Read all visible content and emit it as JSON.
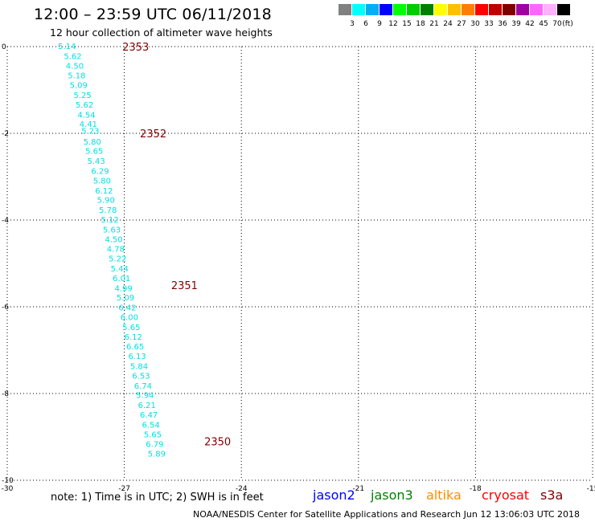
{
  "header": {
    "title": "12:00 – 23:59 UTC 06/11/2018",
    "subtitle": "12 hour collection of altimeter wave heights"
  },
  "colorbar": {
    "colors": [
      "#808080",
      "#00ffff",
      "#00b0f0",
      "#0000ff",
      "#00ff00",
      "#00cc00",
      "#008000",
      "#ffff00",
      "#ffc000",
      "#ff8000",
      "#ff0000",
      "#c00000",
      "#800000",
      "#a000a0",
      "#ff66ff",
      "#ffb0ff",
      "#000000"
    ],
    "labels": [
      "3",
      "6",
      "9",
      "12",
      "15",
      "18",
      "21",
      "24",
      "27",
      "30",
      "33",
      "36",
      "39",
      "42",
      "45",
      "70"
    ],
    "unit": "(ft)"
  },
  "footer": {
    "note": "note: 1) Time is in UTC; 2) SWH is in feet",
    "credit": "NOAA/NESDIS Center for Satellite Applications and Research     Jun 12 13:06:03 UTC 2018"
  },
  "satellites": [
    {
      "name": "jason2",
      "color": "#0000ff"
    },
    {
      "name": "jason3",
      "color": "#008000"
    },
    {
      "name": "altika",
      "color": "#ff8c00"
    },
    {
      "name": "cryosat",
      "color": "#ff0000"
    },
    {
      "name": "s3a",
      "color": "#800000"
    }
  ],
  "chart_data": {
    "type": "scatter",
    "xlim": [
      -30,
      -15
    ],
    "ylim": [
      -10,
      0
    ],
    "x_ticks": [
      "-30",
      "-27",
      "-24",
      "-21",
      "-18",
      "-15"
    ],
    "y_ticks": [
      "0",
      "-2",
      "-4",
      "-6",
      "-8",
      "-10"
    ],
    "grid": true,
    "marker_color": "#00e0e0",
    "label_color": "#800000",
    "time_labels": [
      {
        "text": "2353",
        "lon": -27.05,
        "lat": 0.0
      },
      {
        "text": "2352",
        "lon": -26.6,
        "lat": -2.0
      },
      {
        "text": "2351",
        "lon": -25.8,
        "lat": -5.5
      },
      {
        "text": "2350",
        "lon": -24.95,
        "lat": -9.1
      }
    ],
    "points": [
      {
        "lon": -28.7,
        "lat": 0.0,
        "swh": "5.14"
      },
      {
        "lon": -28.55,
        "lat": -0.23,
        "swh": "5.62"
      },
      {
        "lon": -28.5,
        "lat": -0.45,
        "swh": "4.50"
      },
      {
        "lon": -28.45,
        "lat": -0.68,
        "swh": "5.18"
      },
      {
        "lon": -28.4,
        "lat": -0.9,
        "swh": "5.09"
      },
      {
        "lon": -28.3,
        "lat": -1.13,
        "swh": "5.25"
      },
      {
        "lon": -28.25,
        "lat": -1.35,
        "swh": "5.62"
      },
      {
        "lon": -28.2,
        "lat": -1.58,
        "swh": "4.54"
      },
      {
        "lon": -28.15,
        "lat": -1.8,
        "swh": "4.41"
      },
      {
        "lon": -28.1,
        "lat": -1.95,
        "swh": "5.23"
      },
      {
        "lon": -28.05,
        "lat": -2.2,
        "swh": "5.80"
      },
      {
        "lon": -28.0,
        "lat": -2.42,
        "swh": "5.65"
      },
      {
        "lon": -27.95,
        "lat": -2.65,
        "swh": "5.43"
      },
      {
        "lon": -27.85,
        "lat": -2.88,
        "swh": "6.29"
      },
      {
        "lon": -27.8,
        "lat": -3.1,
        "swh": "5.80"
      },
      {
        "lon": -27.75,
        "lat": -3.33,
        "swh": "6.12"
      },
      {
        "lon": -27.7,
        "lat": -3.55,
        "swh": "5.90"
      },
      {
        "lon": -27.65,
        "lat": -3.78,
        "swh": "5.78"
      },
      {
        "lon": -27.6,
        "lat": -4.0,
        "swh": "5.12"
      },
      {
        "lon": -27.55,
        "lat": -4.23,
        "swh": "5.63"
      },
      {
        "lon": -27.5,
        "lat": -4.45,
        "swh": "4.50"
      },
      {
        "lon": -27.45,
        "lat": -4.68,
        "swh": "4.78"
      },
      {
        "lon": -27.4,
        "lat": -4.9,
        "swh": "5.22"
      },
      {
        "lon": -27.35,
        "lat": -5.13,
        "swh": "5.44"
      },
      {
        "lon": -27.3,
        "lat": -5.35,
        "swh": "6.01"
      },
      {
        "lon": -27.25,
        "lat": -5.58,
        "swh": "4.99"
      },
      {
        "lon": -27.2,
        "lat": -5.8,
        "swh": "5.09"
      },
      {
        "lon": -27.15,
        "lat": -6.03,
        "swh": "6.42"
      },
      {
        "lon": -27.1,
        "lat": -6.25,
        "swh": "6.00"
      },
      {
        "lon": -27.05,
        "lat": -6.48,
        "swh": "5.65"
      },
      {
        "lon": -27.0,
        "lat": -6.7,
        "swh": "6.12"
      },
      {
        "lon": -26.95,
        "lat": -6.93,
        "swh": "6.65"
      },
      {
        "lon": -26.9,
        "lat": -7.15,
        "swh": "6.13"
      },
      {
        "lon": -26.85,
        "lat": -7.38,
        "swh": "5.84"
      },
      {
        "lon": -26.8,
        "lat": -7.6,
        "swh": "6.53"
      },
      {
        "lon": -26.75,
        "lat": -7.83,
        "swh": "6.74"
      },
      {
        "lon": -26.7,
        "lat": -8.05,
        "swh": "5.94"
      },
      {
        "lon": -26.65,
        "lat": -8.28,
        "swh": "6.21"
      },
      {
        "lon": -26.6,
        "lat": -8.5,
        "swh": "6.47"
      },
      {
        "lon": -26.55,
        "lat": -8.73,
        "swh": "6.54"
      },
      {
        "lon": -26.5,
        "lat": -8.95,
        "swh": "5.65"
      },
      {
        "lon": -26.45,
        "lat": -9.18,
        "swh": "6.79"
      },
      {
        "lon": -26.4,
        "lat": -9.4,
        "swh": "5.89"
      }
    ]
  }
}
